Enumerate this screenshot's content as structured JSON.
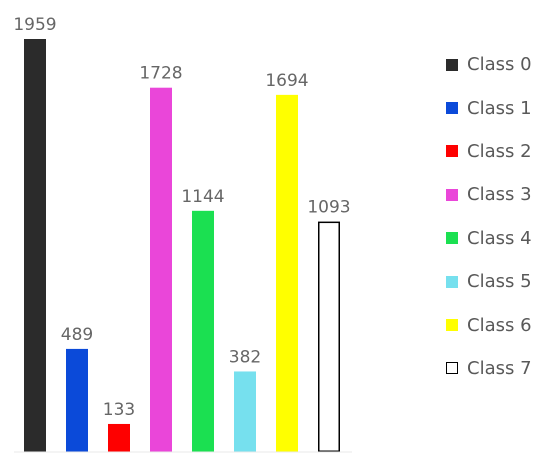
{
  "chart_data": {
    "type": "bar",
    "categories": [
      "Class 0",
      "Class 1",
      "Class 2",
      "Class 3",
      "Class 4",
      "Class 5",
      "Class 6",
      "Class 7"
    ],
    "values": [
      1959,
      489,
      133,
      1728,
      1144,
      382,
      1694,
      1093
    ],
    "colors": [
      "#2b2b2b",
      "#0b4ad9",
      "#fe0000",
      "#ea46d9",
      "#1be051",
      "#76e0ee",
      "#ffff00",
      "#ffffff"
    ],
    "outline": [
      "none",
      "none",
      "none",
      "none",
      "none",
      "none",
      "none",
      "#000000"
    ],
    "ylim": [
      0,
      1959
    ],
    "title": "",
    "xlabel": "",
    "ylabel": "",
    "grid": false,
    "legend_position": "right"
  }
}
